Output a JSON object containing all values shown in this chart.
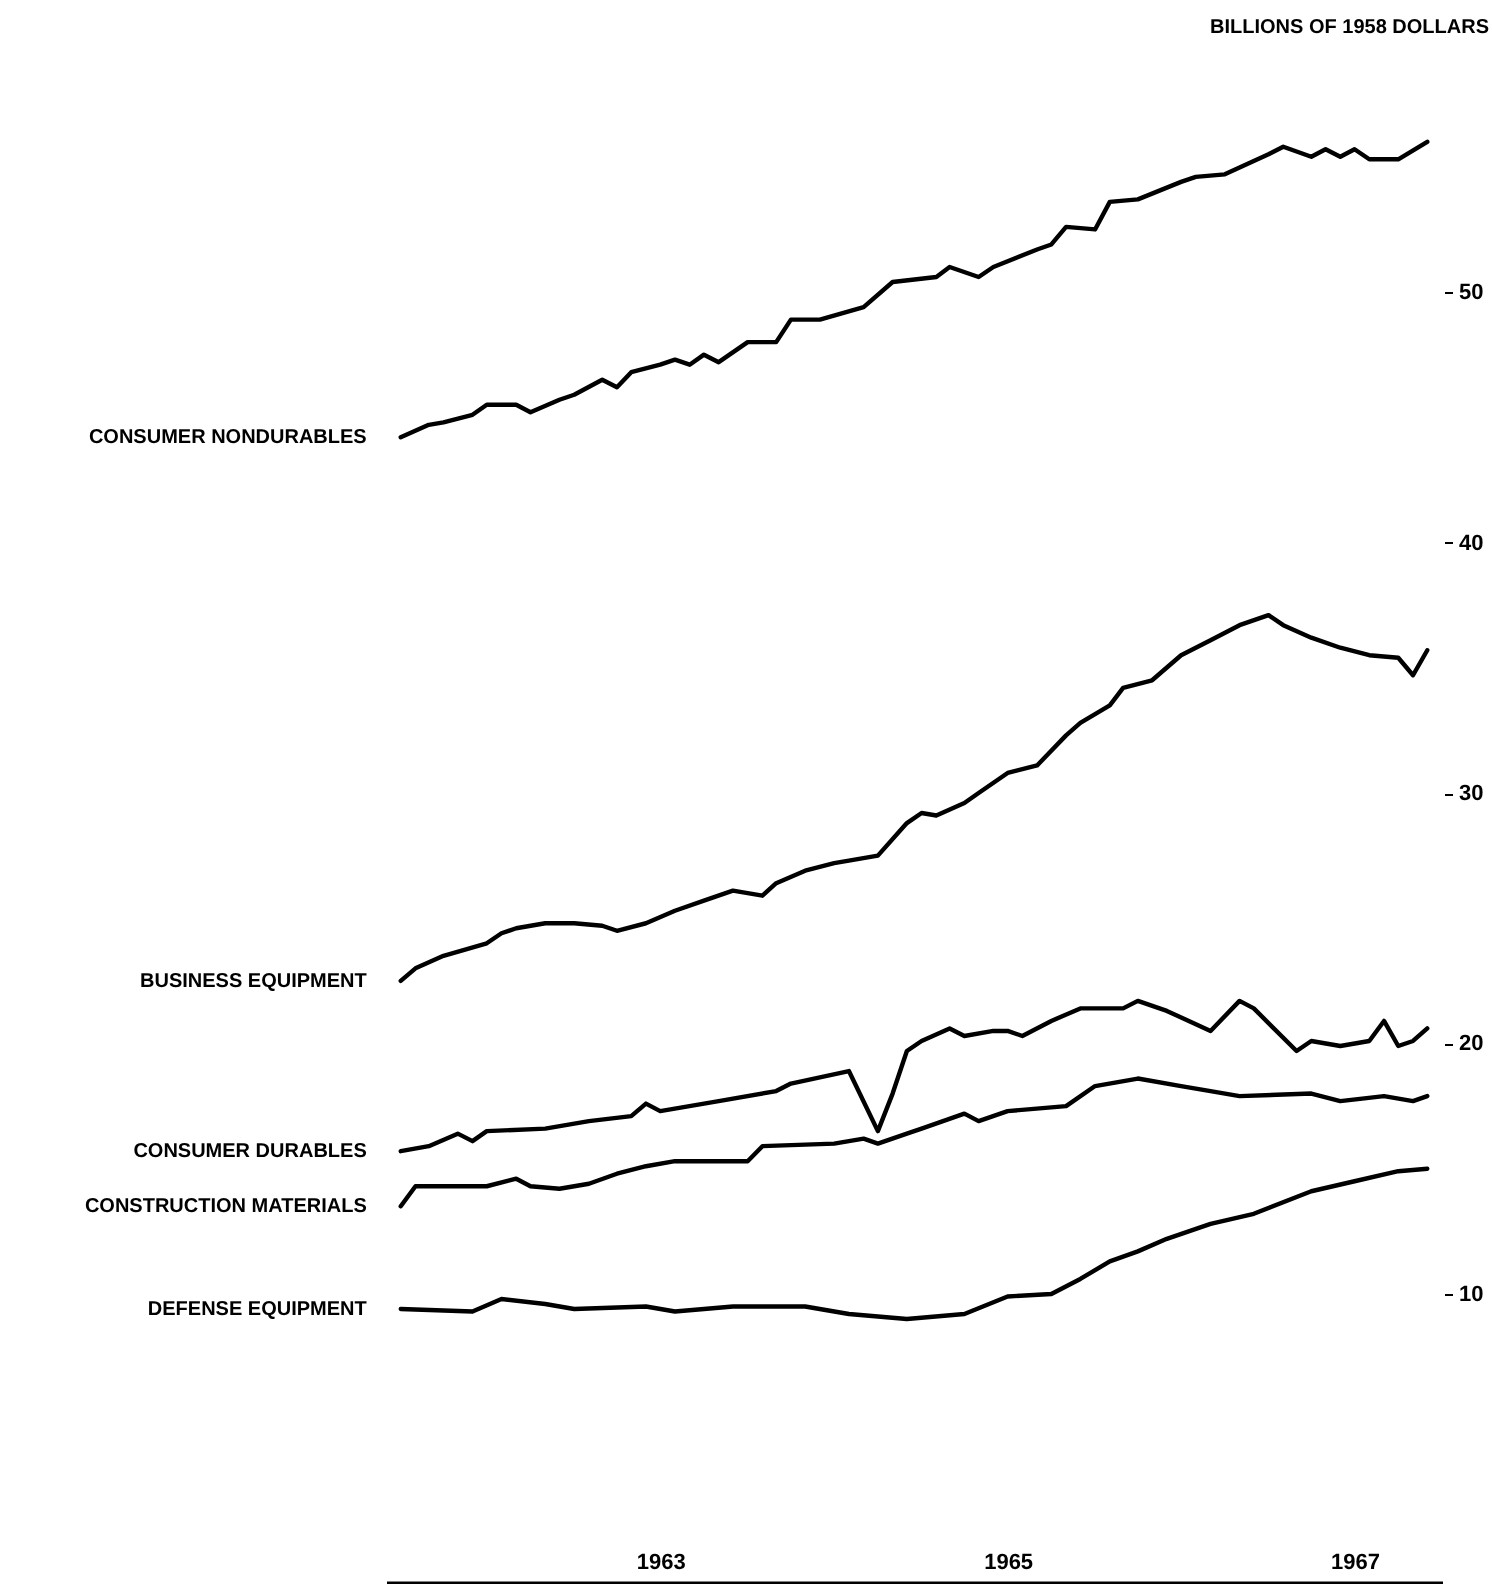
{
  "chart_data": {
    "type": "line",
    "ylabel": "BILLIONS OF 1958 DOLLARS",
    "xlim": [
      "1961-12",
      "1968-01"
    ],
    "xticks": [
      {
        "value": "1963-07",
        "label": "1963"
      },
      {
        "value": "1965-07",
        "label": "1965"
      },
      {
        "value": "1967-07",
        "label": "1967"
      }
    ],
    "ylim": [
      -1.5,
      61.5
    ],
    "yticks": [
      10,
      20,
      30,
      40,
      50
    ],
    "series": [
      {
        "name": "CONSUMER NONDURABLES",
        "color": "#000000",
        "x": [
          "1962-01",
          "1962-03",
          "1962-04",
          "1962-06",
          "1962-07",
          "1962-09",
          "1962-10",
          "1962-12",
          "1963-01",
          "1963-03",
          "1963-04",
          "1963-05",
          "1963-07",
          "1963-08",
          "1963-09",
          "1963-10",
          "1963-11",
          "1964-01",
          "1964-03",
          "1964-04",
          "1964-06",
          "1964-09",
          "1964-11",
          "1965-02",
          "1965-03",
          "1965-05",
          "1965-06",
          "1965-09",
          "1965-10",
          "1965-11",
          "1966-01",
          "1966-02",
          "1966-04",
          "1966-07",
          "1966-08",
          "1966-10",
          "1967-01",
          "1967-02",
          "1967-04",
          "1967-05",
          "1967-06",
          "1967-07",
          "1967-08",
          "1967-10",
          "1967-12"
        ],
        "values": [
          44.2,
          44.7,
          44.8,
          45.1,
          45.5,
          45.5,
          45.2,
          45.7,
          45.9,
          46.5,
          46.2,
          46.8,
          47.1,
          47.3,
          47.1,
          47.5,
          47.2,
          48.0,
          48.0,
          48.9,
          48.9,
          49.4,
          50.4,
          50.6,
          51.0,
          50.6,
          51.0,
          51.7,
          51.9,
          52.6,
          52.5,
          53.6,
          53.7,
          54.4,
          54.6,
          54.7,
          55.5,
          55.8,
          55.4,
          55.7,
          55.4,
          55.7,
          55.3,
          55.3,
          56.0
        ]
      },
      {
        "name": "BUSINESS EQUIPMENT",
        "color": "#000000",
        "x": [
          "1962-01",
          "1962-02",
          "1962-04",
          "1962-07",
          "1962-08",
          "1962-09",
          "1962-11",
          "1963-01",
          "1963-03",
          "1963-04",
          "1963-06",
          "1963-08",
          "1963-10",
          "1963-12",
          "1964-02",
          "1964-03",
          "1964-05",
          "1964-07",
          "1964-08",
          "1964-10",
          "1964-12",
          "1965-01",
          "1965-02",
          "1965-04",
          "1965-05",
          "1965-07",
          "1965-09",
          "1965-11",
          "1965-12",
          "1966-02",
          "1966-03",
          "1966-05",
          "1966-07",
          "1966-09",
          "1966-11",
          "1967-01",
          "1967-02",
          "1967-04",
          "1967-06",
          "1967-08",
          "1967-10",
          "1967-11",
          "1967-12"
        ],
        "values": [
          22.5,
          23.0,
          23.5,
          24.0,
          24.4,
          24.6,
          24.8,
          24.8,
          24.7,
          24.5,
          24.8,
          25.3,
          25.7,
          26.1,
          25.9,
          26.4,
          26.9,
          27.2,
          27.3,
          27.5,
          28.8,
          29.2,
          29.1,
          29.6,
          30.0,
          30.8,
          31.1,
          32.3,
          32.8,
          33.5,
          34.2,
          34.5,
          35.5,
          36.1,
          36.7,
          37.1,
          36.7,
          36.2,
          35.8,
          35.5,
          35.4,
          34.7,
          35.7
        ]
      },
      {
        "name": "CONSUMER DURABLES",
        "color": "#000000",
        "x": [
          "1962-01",
          "1962-03",
          "1962-05",
          "1962-06",
          "1962-07",
          "1962-11",
          "1963-02",
          "1963-05",
          "1963-06",
          "1963-07",
          "1963-11",
          "1964-03",
          "1964-04",
          "1964-08",
          "1964-10",
          "1964-11",
          "1964-12",
          "1965-01",
          "1965-03",
          "1965-04",
          "1965-06",
          "1965-07",
          "1965-08",
          "1965-10",
          "1965-12",
          "1966-03",
          "1966-04",
          "1966-06",
          "1966-09",
          "1966-11",
          "1966-12",
          "1967-03",
          "1967-04",
          "1967-06",
          "1967-08",
          "1967-09",
          "1967-10",
          "1967-11",
          "1967-12"
        ],
        "values": [
          15.7,
          15.9,
          16.4,
          16.1,
          16.5,
          16.6,
          16.9,
          17.1,
          17.6,
          17.3,
          17.7,
          18.1,
          18.4,
          18.9,
          16.5,
          18.0,
          19.7,
          20.1,
          20.6,
          20.3,
          20.5,
          20.5,
          20.3,
          20.9,
          21.4,
          21.4,
          21.7,
          21.3,
          20.5,
          21.7,
          21.4,
          19.7,
          20.1,
          19.9,
          20.1,
          20.9,
          19.9,
          20.1,
          20.6
        ]
      },
      {
        "name": "CONSTRUCTION MATERIALS",
        "color": "#000000",
        "x": [
          "1962-01",
          "1962-02",
          "1962-04",
          "1962-07",
          "1962-09",
          "1962-10",
          "1962-12",
          "1963-02",
          "1963-04",
          "1963-06",
          "1963-08",
          "1964-01",
          "1964-02",
          "1964-07",
          "1964-09",
          "1964-10",
          "1964-12",
          "1965-01",
          "1965-04",
          "1965-05",
          "1965-07",
          "1965-11",
          "1966-01",
          "1966-04",
          "1966-07",
          "1966-09",
          "1966-11",
          "1967-04",
          "1967-06",
          "1967-09",
          "1967-11",
          "1967-12"
        ],
        "values": [
          13.5,
          14.3,
          14.3,
          14.3,
          14.6,
          14.3,
          14.2,
          14.4,
          14.8,
          15.1,
          15.3,
          15.3,
          15.9,
          16.0,
          16.2,
          16.0,
          16.4,
          16.6,
          17.2,
          16.9,
          17.3,
          17.5,
          18.3,
          18.6,
          18.3,
          18.1,
          17.9,
          18.0,
          17.7,
          17.9,
          17.7,
          17.9
        ]
      },
      {
        "name": "DEFENSE EQUIPMENT",
        "color": "#000000",
        "x": [
          "1962-01",
          "1962-06",
          "1962-08",
          "1962-11",
          "1963-01",
          "1963-06",
          "1963-08",
          "1963-12",
          "1964-05",
          "1964-08",
          "1964-12",
          "1965-04",
          "1965-07",
          "1965-10",
          "1965-12",
          "1966-02",
          "1966-04",
          "1966-06",
          "1966-09",
          "1966-12",
          "1967-04",
          "1967-07",
          "1967-10",
          "1967-12"
        ],
        "values": [
          9.4,
          9.3,
          9.8,
          9.6,
          9.4,
          9.5,
          9.3,
          9.5,
          9.5,
          9.2,
          9.0,
          9.2,
          9.9,
          10.0,
          10.6,
          11.3,
          11.7,
          12.2,
          12.8,
          13.2,
          14.1,
          14.5,
          14.9,
          15.0
        ]
      }
    ]
  }
}
